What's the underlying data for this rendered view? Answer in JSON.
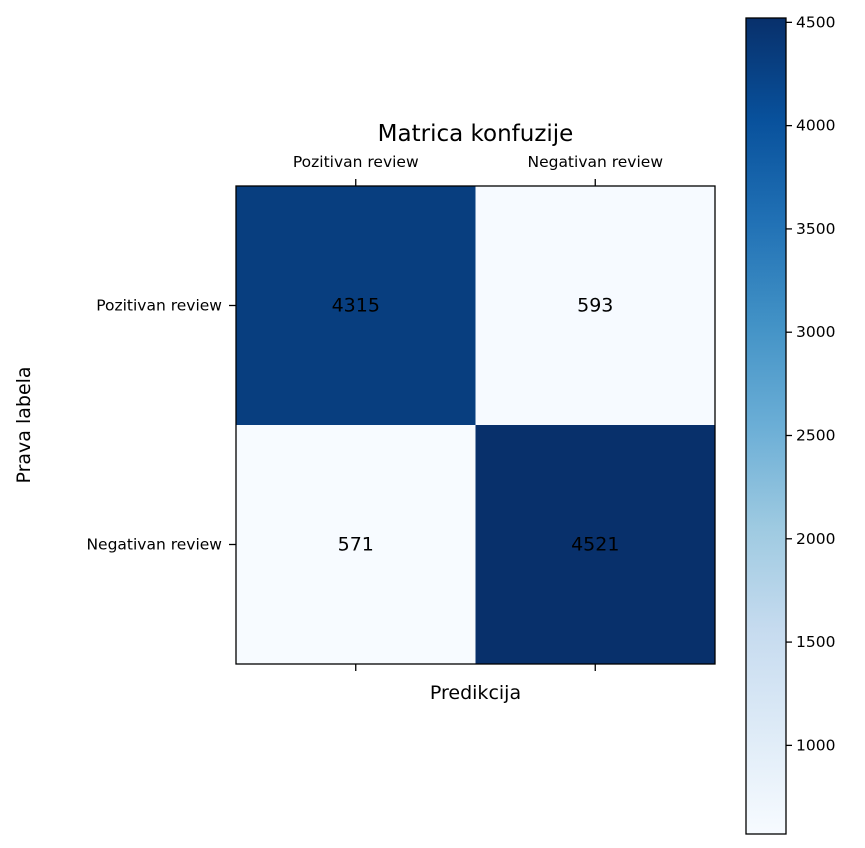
{
  "chart_data": {
    "type": "heatmap",
    "title": "Matrica konfuzije",
    "xlabel": "Predikcija",
    "ylabel": "Prava labela",
    "x_categories": [
      "Pozitivan review",
      "Negativan review"
    ],
    "y_categories": [
      "Pozitivan review",
      "Negativan review"
    ],
    "values": [
      [
        4315,
        593
      ],
      [
        571,
        4521
      ]
    ],
    "colormap": "Blues",
    "colorbar": {
      "min": 571,
      "max": 4521,
      "ticks": [
        1000,
        1500,
        2000,
        2500,
        3000,
        3500,
        4000,
        4500
      ]
    },
    "x_tick_position": "top"
  }
}
